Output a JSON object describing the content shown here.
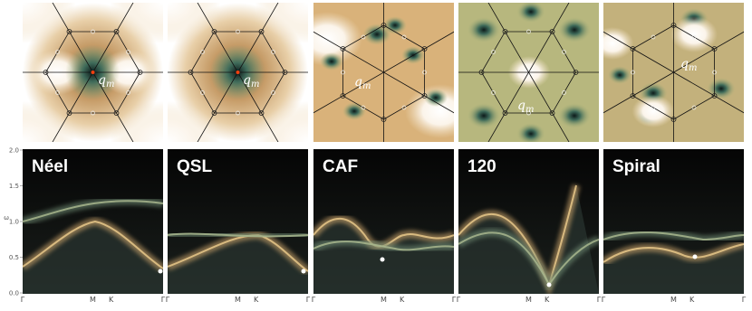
{
  "figure": {
    "top_panels": [
      {
        "annotation": {
          "symbol": "q",
          "subscript": "m"
        }
      },
      {
        "annotation": {
          "symbol": "q",
          "subscript": "m"
        }
      },
      {
        "annotation": {
          "symbol": "q",
          "subscript": "m"
        }
      },
      {
        "annotation": {
          "symbol": "q",
          "subscript": "m"
        }
      },
      {
        "annotation": {
          "symbol": "q",
          "subscript": "m"
        }
      }
    ],
    "bottom_panels": [
      {
        "title": "Néel"
      },
      {
        "title": "QSL"
      },
      {
        "title": "CAF"
      },
      {
        "title": "120"
      },
      {
        "title": "Spiral"
      }
    ],
    "y_label": "ω",
    "ylim": [
      0,
      2
    ],
    "yticks": [
      {
        "value": 0,
        "label": "0.0"
      },
      {
        "value": 0.5,
        "label": "0.5"
      },
      {
        "value": 1,
        "label": "1.0"
      },
      {
        "value": 1.5,
        "label": "1.5"
      },
      {
        "value": 2,
        "label": "2.0"
      }
    ],
    "x_tick_labels": [
      "Γ",
      "M",
      "K",
      "Γ"
    ]
  }
}
